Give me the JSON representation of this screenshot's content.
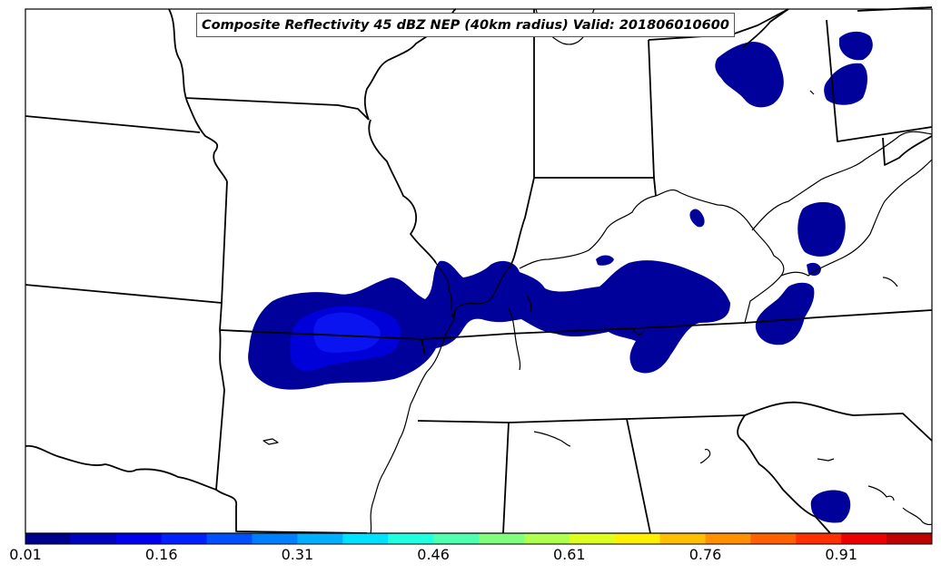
{
  "title": "Composite Reflectivity 45 dBZ NEP (40km radius) Valid: 201806010600",
  "colorbar": {
    "tick_labels": [
      "0.01",
      "0.16",
      "0.31",
      "0.46",
      "0.61",
      "0.76",
      "0.91"
    ],
    "colors": [
      "#00008f",
      "#0000bf",
      "#0000ef",
      "#0020ff",
      "#0050ff",
      "#0080ff",
      "#00b0ff",
      "#00e0ff",
      "#20ffdf",
      "#50ffaf",
      "#80ff7f",
      "#afff50",
      "#dfff20",
      "#ffef00",
      "#ffbf00",
      "#ff9000",
      "#ff6000",
      "#ff3000",
      "#ef0000",
      "#bf0000"
    ]
  },
  "probability_colors": {
    "low": "#00009a",
    "medium": "#0000d8",
    "high": "#0a14f0"
  }
}
